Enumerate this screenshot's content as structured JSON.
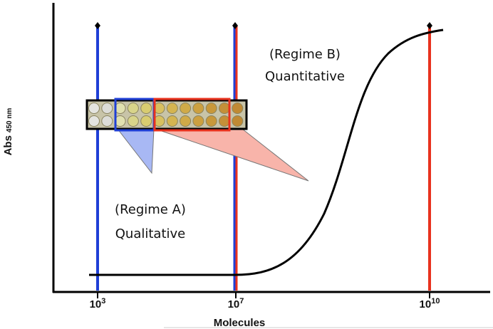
{
  "y_axis_label": {
    "text": "Abs",
    "subscript": "450 nm"
  },
  "x_axis_label": "Molecules",
  "x_ticks": [
    {
      "base": "10",
      "exponent": "3"
    },
    {
      "base": "10",
      "exponent": "7"
    },
    {
      "base": "10",
      "exponent": "10"
    }
  ],
  "annotations": [
    {
      "line1": "(Regime B)",
      "line2": "Quantitative"
    },
    {
      "line1": "(Regime A)",
      "line2": "Qualitative"
    }
  ]
}
